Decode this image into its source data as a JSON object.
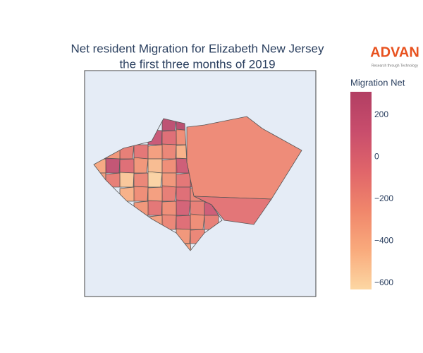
{
  "title_lines": [
    "Net resident Migration for Elizabeth New Jersey",
    "the first three months of 2019"
  ],
  "logo": {
    "name": "ADVAN",
    "tagline": "Research through Technology"
  },
  "chart_data": {
    "type": "choropleth",
    "colorbar_title": "Migration Net",
    "zlim": [
      -630,
      310
    ],
    "zticks": [
      {
        "value": -600,
        "label": "−600"
      },
      {
        "value": -400,
        "label": "−400"
      },
      {
        "value": -200,
        "label": "−200"
      },
      0,
      200
    ],
    "colorscale": [
      "#fcd7a3",
      "#f9aa7c",
      "#f0866b",
      "#e0656a",
      "#c84d6c",
      "#b23e63"
    ],
    "values": [
      -230,
      -90,
      250,
      280,
      150,
      -50,
      -250,
      -300,
      -150,
      -100,
      -350,
      -200,
      -450,
      -400,
      200,
      -50,
      -300,
      -500,
      -250,
      100,
      -350,
      -150,
      -550,
      -200,
      -600,
      -300,
      -100,
      0,
      -450,
      -250,
      -350,
      -150,
      -50,
      -200,
      -300,
      -100,
      -250,
      50,
      -150,
      100,
      -350,
      -200,
      -50,
      -250,
      -150,
      -300,
      -200,
      -350
    ]
  }
}
